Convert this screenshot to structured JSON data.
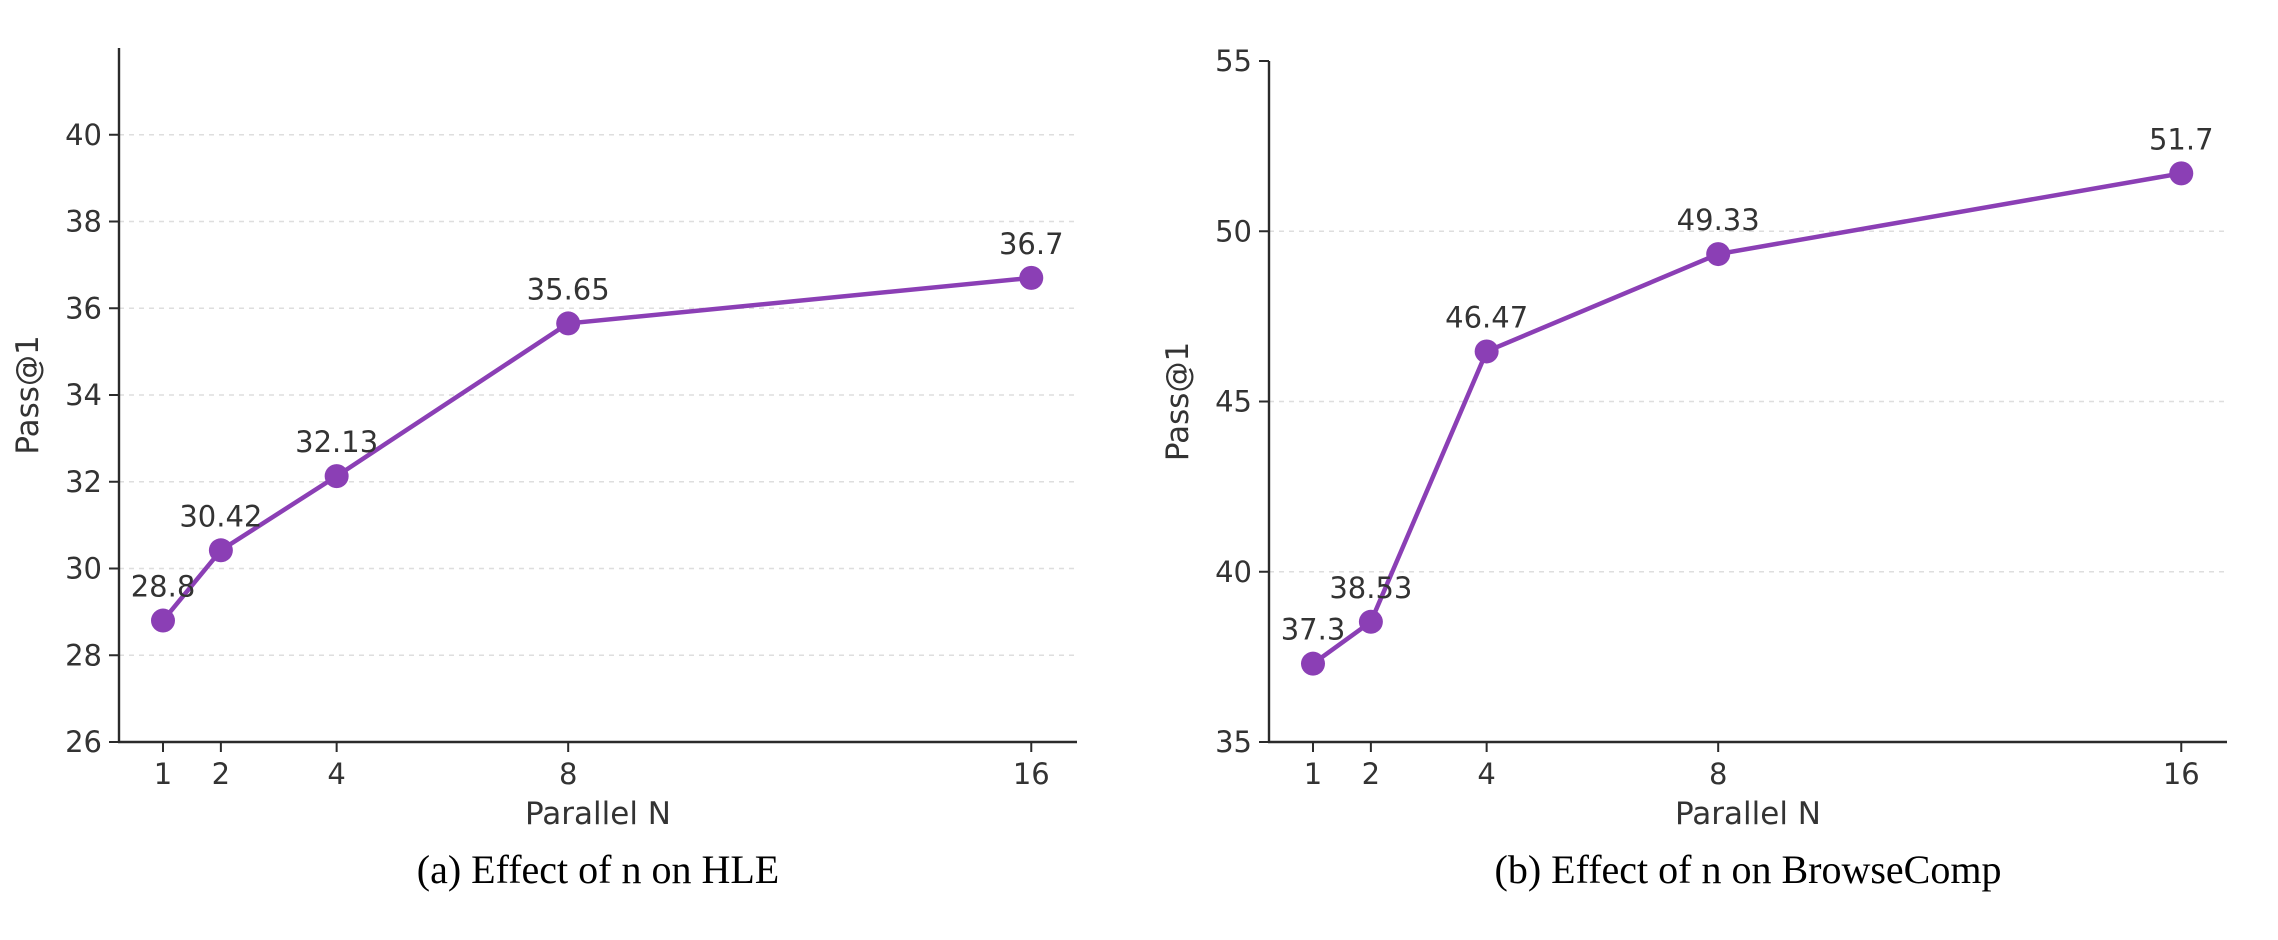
{
  "figure": {
    "background": "#ffffff"
  },
  "style": {
    "line_color": "#8b3fb5",
    "marker_color": "#8b3fb5",
    "grid_color": "#dedede",
    "spine_color": "#2b2b2b",
    "tick_label_color": "#333333",
    "point_label_color": "#333333",
    "axis_title_color": "#333333",
    "caption_color": "#000000"
  },
  "chart_data": [
    {
      "id": "hle",
      "type": "line",
      "caption": "(a) Effect of n on HLE",
      "xlabel": "Parallel N",
      "ylabel": "Pass@1",
      "x": [
        1,
        2,
        4,
        8,
        16
      ],
      "values": [
        28.8,
        30.42,
        32.13,
        35.65,
        36.7
      ],
      "point_labels": [
        "28.8",
        "30.42",
        "32.13",
        "35.65",
        "36.7"
      ],
      "xticks": [
        1,
        2,
        4,
        8,
        16
      ],
      "yticks": [
        26,
        28,
        30,
        32,
        34,
        36,
        38,
        40
      ],
      "xlim": [
        0.24,
        16.79
      ],
      "ylim": [
        26,
        42
      ],
      "grid": "horizontal-dashed",
      "legend": null
    },
    {
      "id": "browsecomp",
      "type": "line",
      "caption": "(b) Effect of n on BrowseComp",
      "xlabel": "Parallel N",
      "ylabel": "Pass@1",
      "x": [
        1,
        2,
        4,
        8,
        16
      ],
      "values": [
        37.3,
        38.53,
        46.47,
        49.33,
        51.7
      ],
      "point_labels": [
        "37.3",
        "38.53",
        "46.47",
        "49.33",
        "51.7"
      ],
      "xticks": [
        1,
        2,
        4,
        8,
        16
      ],
      "yticks": [
        35,
        40,
        45,
        50,
        55
      ],
      "xlim": [
        0.24,
        16.79
      ],
      "ylim": [
        35,
        55
      ],
      "grid": "horizontal-dashed",
      "legend": null
    }
  ]
}
